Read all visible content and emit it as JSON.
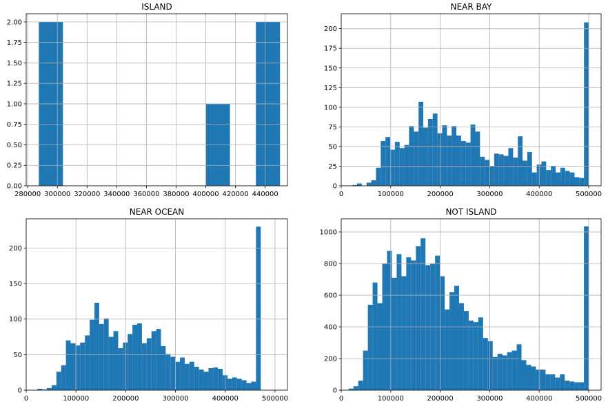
{
  "figure": {
    "background": "#ffffff"
  },
  "colors": {
    "bar": "#1f77b4",
    "grid": "#b0b0b0",
    "axis": "#000000"
  },
  "chart_data": [
    {
      "type": "bar",
      "title": "ISLAND",
      "grid": true,
      "xlim": [
        279000,
        455000
      ],
      "ylim": [
        0,
        2.1
      ],
      "xticks": [
        280000,
        300000,
        320000,
        340000,
        360000,
        380000,
        400000,
        420000,
        440000
      ],
      "xtick_labels": [
        "280000",
        "300000",
        "320000",
        "340000",
        "360000",
        "380000",
        "400000",
        "420000",
        "440000"
      ],
      "yticks": [
        0,
        0.25,
        0.5,
        0.75,
        1.0,
        1.25,
        1.5,
        1.75,
        2.0
      ],
      "ytick_labels": [
        "0.00",
        "0.25",
        "0.50",
        "0.75",
        "1.00",
        "1.25",
        "1.50",
        "1.75",
        "2.00"
      ],
      "bins": [
        {
          "x0": 287500,
          "x1": 303750,
          "value": 2
        },
        {
          "x0": 400000,
          "x1": 416250,
          "value": 1
        },
        {
          "x0": 433750,
          "x1": 450000,
          "value": 2
        }
      ]
    },
    {
      "type": "bar",
      "title": "NEAR BAY",
      "grid": true,
      "xlim": [
        0,
        525000
      ],
      "ylim": [
        0,
        219
      ],
      "bin_start": 22500,
      "bin_width": 9550,
      "xticks": [
        0,
        100000,
        200000,
        300000,
        400000,
        500000
      ],
      "xtick_labels": [
        "0",
        "100000",
        "200000",
        "300000",
        "400000",
        "500000"
      ],
      "yticks": [
        0,
        25,
        50,
        75,
        100,
        125,
        150,
        175,
        200
      ],
      "ytick_labels": [
        "0",
        "25",
        "50",
        "75",
        "100",
        "125",
        "150",
        "175",
        "200"
      ],
      "values": [
        1,
        3,
        0,
        4,
        7,
        23,
        57,
        62,
        46,
        56,
        48,
        52,
        76,
        69,
        107,
        74,
        85,
        92,
        67,
        77,
        64,
        76,
        64,
        57,
        55,
        78,
        69,
        37,
        33,
        25,
        41,
        40,
        38,
        48,
        36,
        63,
        32,
        43,
        17,
        27,
        31,
        20,
        25,
        17,
        23,
        19,
        17,
        11,
        10,
        208
      ]
    },
    {
      "type": "bar",
      "title": "NEAR OCEAN",
      "grid": true,
      "xlim": [
        0,
        525000
      ],
      "ylim": [
        0,
        241
      ],
      "bin_start": 22500,
      "bin_width": 9550,
      "xticks": [
        0,
        100000,
        200000,
        300000,
        400000,
        500000
      ],
      "xtick_labels": [
        "0",
        "100000",
        "200000",
        "300000",
        "400000",
        "500000"
      ],
      "yticks": [
        0,
        50,
        100,
        150,
        200
      ],
      "ytick_labels": [
        "0",
        "50",
        "100",
        "150",
        "200"
      ],
      "values": [
        2,
        1,
        3,
        7,
        26,
        35,
        70,
        66,
        63,
        67,
        77,
        99,
        123,
        93,
        101,
        75,
        83,
        59,
        67,
        79,
        92,
        94,
        66,
        73,
        83,
        86,
        62,
        51,
        47,
        40,
        46,
        37,
        40,
        33,
        29,
        26,
        31,
        32,
        30,
        21,
        16,
        18,
        16,
        14,
        10,
        12,
        230,
        0,
        0,
        0
      ]
    },
    {
      "type": "bar",
      "title": "NOT ISLAND",
      "grid": true,
      "xlim": [
        0,
        525000
      ],
      "ylim": [
        0,
        1083
      ],
      "bin_start": 14999,
      "bin_width": 9700,
      "xticks": [
        0,
        100000,
        200000,
        300000,
        400000,
        500000
      ],
      "xtick_labels": [
        "0",
        "100000",
        "200000",
        "300000",
        "400000",
        "500000"
      ],
      "yticks": [
        0,
        200,
        400,
        600,
        800,
        1000
      ],
      "ytick_labels": [
        "0",
        "200",
        "400",
        "600",
        "800",
        "1000"
      ],
      "values": [
        10,
        25,
        60,
        250,
        540,
        680,
        550,
        800,
        880,
        710,
        860,
        720,
        840,
        820,
        910,
        960,
        790,
        800,
        850,
        720,
        510,
        620,
        660,
        550,
        500,
        440,
        430,
        460,
        330,
        310,
        210,
        230,
        220,
        240,
        250,
        290,
        190,
        160,
        150,
        130,
        130,
        100,
        100,
        80,
        100,
        60,
        55,
        50,
        50,
        1035
      ]
    }
  ]
}
